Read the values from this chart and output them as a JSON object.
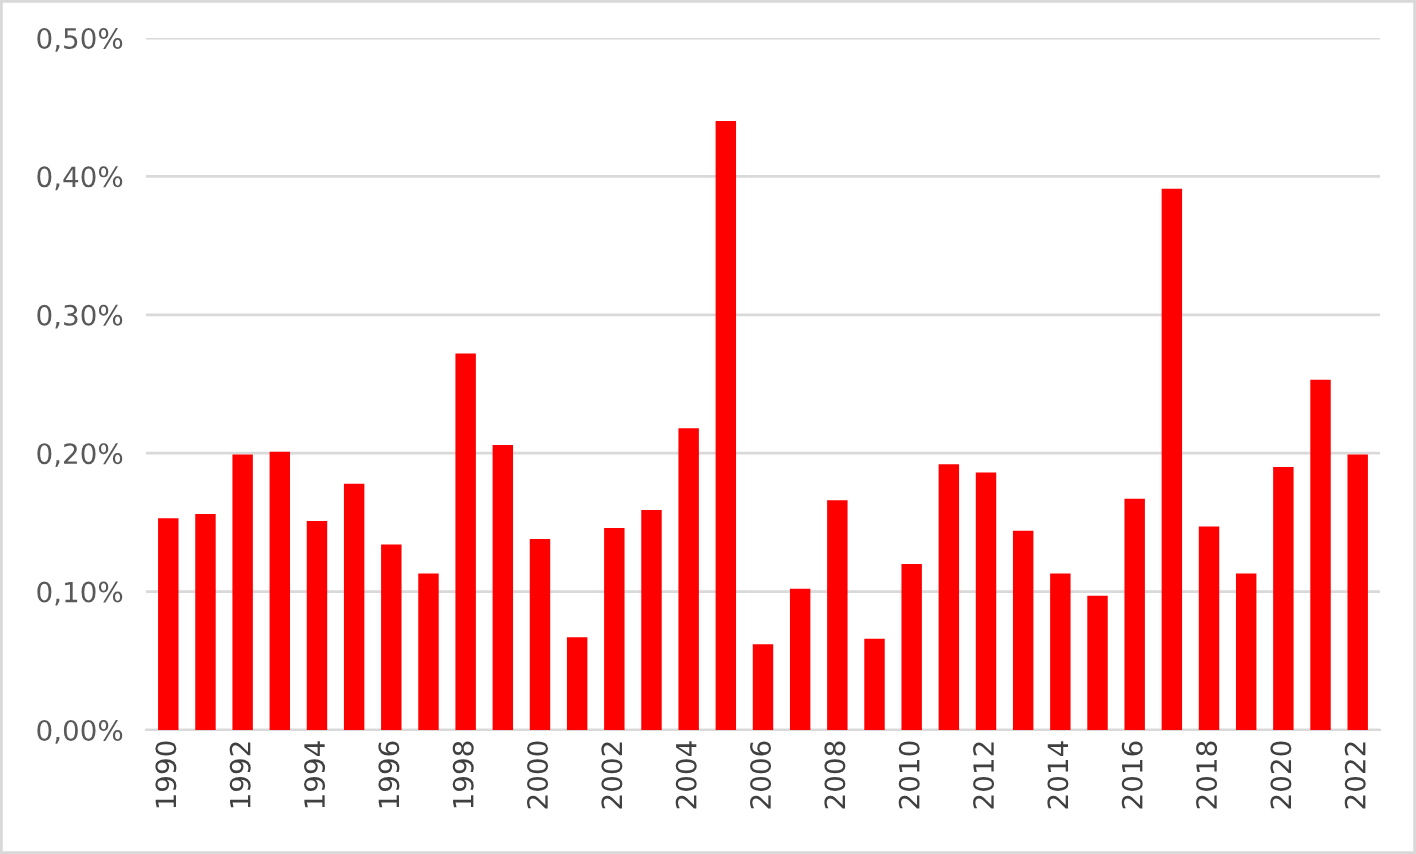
{
  "chart_data": {
    "type": "bar",
    "categories": [
      "1990",
      null,
      "1992",
      null,
      "1994",
      null,
      "1996",
      null,
      "1998",
      null,
      "2000",
      null,
      "2002",
      null,
      "2004",
      null,
      "2006",
      null,
      "2008",
      null,
      "2010",
      null,
      "2012",
      null,
      "2014",
      null,
      "2016",
      null,
      "2018",
      null,
      "2020",
      null,
      "2022"
    ],
    "values": [
      0.153,
      0.156,
      0.199,
      0.201,
      0.151,
      0.178,
      0.134,
      0.113,
      0.272,
      0.206,
      0.138,
      0.067,
      0.146,
      0.159,
      0.218,
      0.44,
      0.062,
      0.102,
      0.166,
      0.066,
      0.12,
      0.192,
      0.186,
      0.144,
      0.113,
      0.097,
      0.167,
      0.391,
      0.147,
      0.113,
      0.19,
      0.253,
      0.199
    ],
    "color": "#ff0000",
    "ylim": [
      0,
      0.5
    ],
    "yticks": [
      {
        "value": 0,
        "label": "0,00%"
      },
      {
        "value": 0.1,
        "label": "0,10%"
      },
      {
        "value": 0.2,
        "label": "0,20%"
      },
      {
        "value": 0.3,
        "label": "0,30%"
      },
      {
        "value": 0.4,
        "label": "0,40%"
      },
      {
        "value": 0.5,
        "label": "0,50%"
      }
    ],
    "grid": "y"
  }
}
